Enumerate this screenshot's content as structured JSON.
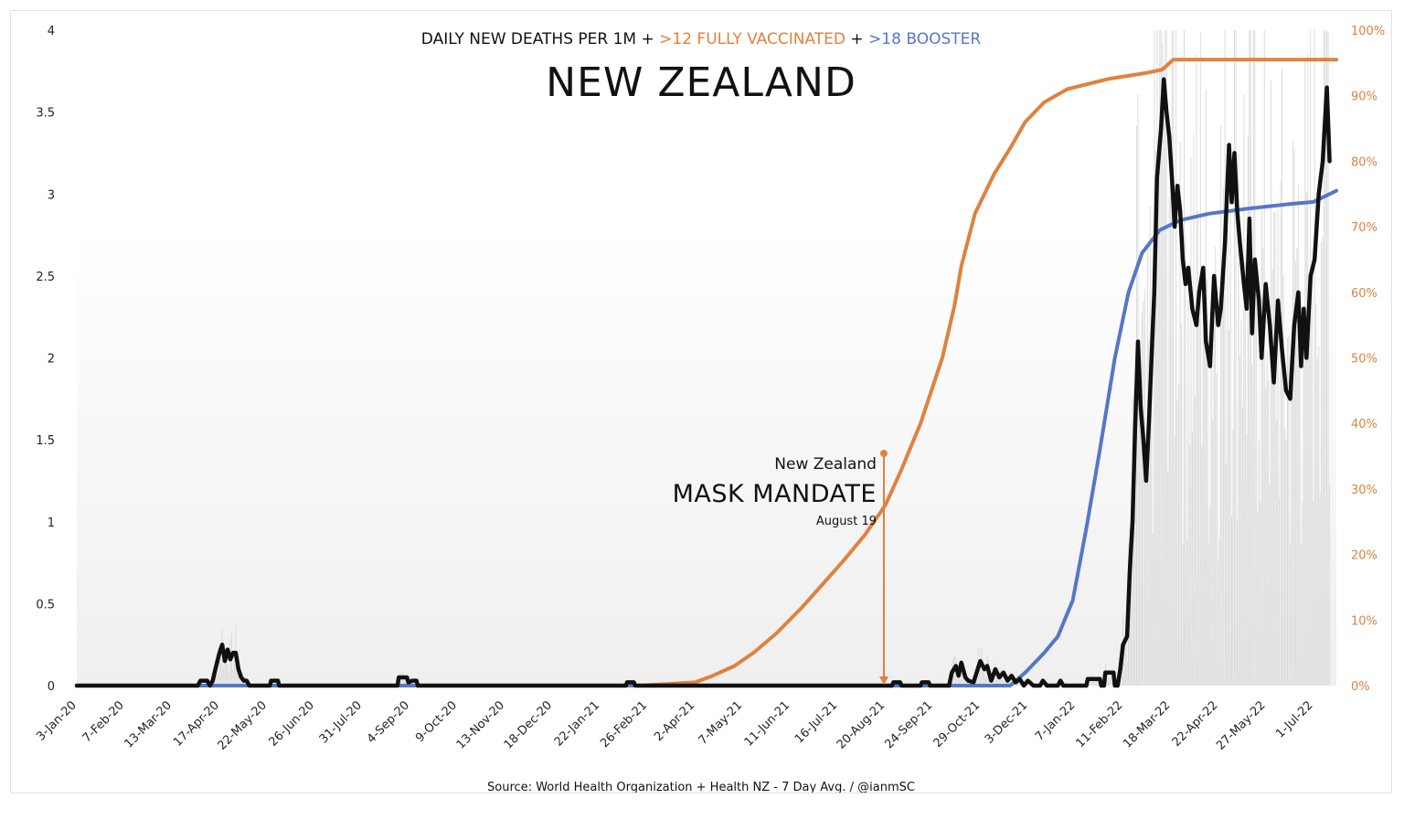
{
  "chart_data": {
    "type": "line",
    "title": "NEW ZEALAND",
    "subtitle": {
      "part1": "DAILY NEW DEATHS PER 1M + ",
      "part2": ">12 FULLY VACCINATED",
      "part3": " + ",
      "part4": ">18 BOOSTER"
    },
    "source": "Source: World Health Organization + Health NZ - 7 Day Avg. / @ianmSC",
    "x_labels": [
      "3-Jan-20",
      "7-Feb-20",
      "13-Mar-20",
      "17-Apr-20",
      "22-May-20",
      "26-Jun-20",
      "31-Jul-20",
      "4-Sep-20",
      "9-Oct-20",
      "13-Nov-20",
      "18-Dec-20",
      "22-Jan-21",
      "26-Feb-21",
      "2-Apr-21",
      "7-May-21",
      "11-Jun-21",
      "16-Jul-21",
      "20-Aug-21",
      "24-Sep-21",
      "29-Oct-21",
      "3-Dec-21",
      "7-Jan-22",
      "11-Feb-22",
      "18-Mar-22",
      "22-Apr-22",
      "27-May-22",
      "1-Jul-22"
    ],
    "y_left": {
      "ticks": [
        "4",
        "3.5",
        "3",
        "2.5",
        "2",
        "1.5",
        "1",
        "0.5",
        "0"
      ],
      "range": [
        0,
        4
      ]
    },
    "y_right": {
      "ticks": [
        "100%",
        "90%",
        "80%",
        "70%",
        "60%",
        "50%",
        "40%",
        "30%",
        "20%",
        "10%",
        "0%"
      ],
      "range": [
        0,
        100
      ]
    },
    "x_range": [
      "3-Jan-20",
      "18-Jul-22"
    ],
    "series": [
      {
        "name": ">12 FULLY VACCINATED",
        "axis": "right",
        "color": "#e0813f",
        "points": [
          [
            "3-Jan-20",
            0
          ],
          [
            "20-Feb-21",
            0
          ],
          [
            "2-Apr-21",
            0.5
          ],
          [
            "15-Apr-21",
            1.5
          ],
          [
            "1-May-21",
            3
          ],
          [
            "15-May-21",
            5
          ],
          [
            "1-Jun-21",
            8
          ],
          [
            "20-Jun-21",
            12
          ],
          [
            "5-Jul-21",
            15.5
          ],
          [
            "20-Jul-21",
            19
          ],
          [
            "5-Aug-21",
            23
          ],
          [
            "20-Aug-21",
            27.5
          ],
          [
            "1-Sep-21",
            33
          ],
          [
            "15-Sep-21",
            40
          ],
          [
            "1-Oct-21",
            50
          ],
          [
            "10-Oct-21",
            58
          ],
          [
            "15-Oct-21",
            64
          ],
          [
            "25-Oct-21",
            72
          ],
          [
            "8-Nov-21",
            78
          ],
          [
            "20-Nov-21,",
            82
          ],
          [
            "1-Dec-21",
            86
          ],
          [
            "15-Dec-21",
            89
          ],
          [
            "1-Jan-22",
            91
          ],
          [
            "1-Feb-22",
            92.6
          ],
          [
            "1-Mar-22",
            93.5
          ],
          [
            "12-Mar-22",
            94
          ],
          [
            "20-Mar-22",
            95.5
          ],
          [
            "1-Apr-22",
            95.5
          ],
          [
            "18-Jul-22",
            95.5
          ]
        ]
      },
      {
        "name": ">18 BOOSTER",
        "axis": "right",
        "color": "#5577c6",
        "points": [
          [
            "3-Jan-20",
            0
          ],
          [
            "20-Nov-21",
            0
          ],
          [
            "1-Dec-21",
            2
          ],
          [
            "15-Dec-21",
            5
          ],
          [
            "25-Dec-21",
            7.5
          ],
          [
            "5-Jan-22",
            13
          ],
          [
            "15-Jan-22",
            24
          ],
          [
            "25-Jan-22",
            36
          ],
          [
            "5-Feb-22",
            50
          ],
          [
            "15-Feb-22",
            60
          ],
          [
            "25-Feb-22",
            66
          ],
          [
            "10-Mar-22",
            69.5
          ],
          [
            "25-Mar-22",
            71
          ],
          [
            "15-Apr-22",
            72
          ],
          [
            "15-May-22",
            72.8
          ],
          [
            "15-Jun-22",
            73.5
          ],
          [
            "1-Jul-22",
            73.8
          ],
          [
            "18-Jul-22",
            75.5
          ]
        ]
      },
      {
        "name": "Daily new deaths per 1M (7 day avg)",
        "axis": "left",
        "color": "#111111",
        "points": [
          [
            "3-Jan-20",
            0
          ],
          [
            "1-Apr-20",
            0
          ],
          [
            "3-Apr-20",
            0.03
          ],
          [
            "8-Apr-20",
            0.03
          ],
          [
            "10-Apr-20",
            0
          ],
          [
            "12-Apr-20",
            0.03
          ],
          [
            "14-Apr-20",
            0.1
          ],
          [
            "17-Apr-20",
            0.2
          ],
          [
            "19-Apr-20",
            0.25
          ],
          [
            "21-Apr-20",
            0.15
          ],
          [
            "23-Apr-20",
            0.22
          ],
          [
            "25-Apr-20",
            0.16
          ],
          [
            "27-Apr-20",
            0.2
          ],
          [
            "29-Apr-20",
            0.2
          ],
          [
            "1-May-20",
            0.1
          ],
          [
            "3-May-20",
            0.05
          ],
          [
            "5-May-20",
            0.03
          ],
          [
            "7-May-20",
            0.03
          ],
          [
            "9-May-20",
            0
          ],
          [
            "24-May-20",
            0
          ],
          [
            "25-May-20",
            0.03
          ],
          [
            "30-May-20",
            0.03
          ],
          [
            "31-May-20",
            0
          ],
          [
            "26-Aug-20",
            0
          ],
          [
            "27-Aug-20",
            0.05
          ],
          [
            "2-Sep-20",
            0.05
          ],
          [
            "3-Sep-20",
            0.02
          ],
          [
            "6-Sep-20",
            0.03
          ],
          [
            "9-Sep-20",
            0.03
          ],
          [
            "10-Sep-20",
            0
          ],
          [
            "10-Feb-21",
            0
          ],
          [
            "11-Feb-21",
            0.02
          ],
          [
            "16-Feb-21",
            0.02
          ],
          [
            "17-Feb-21",
            0
          ],
          [
            "25-Aug-21",
            0
          ],
          [
            "26-Aug-21",
            0.02
          ],
          [
            "31-Aug-21",
            0.02
          ],
          [
            "1-Sep-21",
            0
          ],
          [
            "15-Sep-21",
            0
          ],
          [
            "16-Sep-21",
            0.02
          ],
          [
            "21-Sep-21",
            0.02
          ],
          [
            "22-Sep-21",
            0
          ],
          [
            "6-Oct-21",
            0
          ],
          [
            "8-Oct-21",
            0.08
          ],
          [
            "11-Oct-21",
            0.12
          ],
          [
            "13-Oct-21",
            0.06
          ],
          [
            "15-Oct-21",
            0.14
          ],
          [
            "18-Oct-21",
            0.05
          ],
          [
            "20-Oct-21",
            0.03
          ],
          [
            "24-Oct-21",
            0.02
          ],
          [
            "27-Oct-21",
            0.1
          ],
          [
            "29-Oct-21",
            0.15
          ],
          [
            "1-Nov-21",
            0.1
          ],
          [
            "3-Nov-21",
            0.12
          ],
          [
            "6-Nov-21",
            0.03
          ],
          [
            "9-Nov-21",
            0.1
          ],
          [
            "12-Nov-21",
            0.05
          ],
          [
            "15-Nov-21",
            0.08
          ],
          [
            "18-Nov-21",
            0.03
          ],
          [
            "21-Nov-21",
            0.06
          ],
          [
            "24-Nov-21",
            0.02
          ],
          [
            "27-Nov-21",
            0.04
          ],
          [
            "30-Nov-21",
            0
          ],
          [
            "3-Dec-21",
            0.03
          ],
          [
            "7-Dec-21",
            0
          ],
          [
            "12-Dec-21",
            0
          ],
          [
            "14-Dec-21",
            0.03
          ],
          [
            "17-Dec-21",
            0
          ],
          [
            "25-Dec-21",
            0
          ],
          [
            "27-Dec-21",
            0.03
          ],
          [
            "29-Dec-21",
            0
          ],
          [
            "15-Jan-22",
            0
          ],
          [
            "16-Jan-22",
            0.04
          ],
          [
            "25-Jan-22",
            0.04
          ],
          [
            "26-Jan-22",
            0
          ],
          [
            "28-Jan-22",
            0
          ],
          [
            "29-Jan-22",
            0.08
          ],
          [
            "4-Feb-22",
            0.08
          ],
          [
            "5-Feb-22",
            0
          ],
          [
            "7-Feb-22",
            0
          ],
          [
            "9-Feb-22",
            0.1
          ],
          [
            "11-Feb-22",
            0.25
          ],
          [
            "14-Feb-22",
            0.3
          ],
          [
            "16-Feb-22",
            0.7
          ],
          [
            "18-Feb-22",
            1.0
          ],
          [
            "20-Feb-22",
            1.6
          ],
          [
            "22-Feb-22",
            2.1
          ],
          [
            "24-Feb-22",
            1.7
          ],
          [
            "26-Feb-22",
            1.5
          ],
          [
            "28-Feb-22",
            1.25
          ],
          [
            "2-Mar-22",
            1.6
          ],
          [
            "4-Mar-22",
            2.0
          ],
          [
            "6-Mar-22",
            2.4
          ],
          [
            "8-Mar-22",
            3.1
          ],
          [
            "11-Mar-22",
            3.4
          ],
          [
            "13-Mar-22",
            3.7
          ],
          [
            "15-Mar-22",
            3.5
          ],
          [
            "17-Mar-22",
            3.35
          ],
          [
            "19-Mar-22",
            3.1
          ],
          [
            "21-Mar-22",
            2.8
          ],
          [
            "23-Mar-22",
            3.05
          ],
          [
            "25-Mar-22",
            2.9
          ],
          [
            "27-Mar-22",
            2.6
          ],
          [
            "29-Mar-22",
            2.45
          ],
          [
            "31-Mar-22",
            2.55
          ],
          [
            "3-Apr-22",
            2.3
          ],
          [
            "6-Apr-22",
            2.2
          ],
          [
            "8-Apr-22",
            2.4
          ],
          [
            "11-Apr-22",
            2.55
          ],
          [
            "13-Apr-22",
            2.1
          ],
          [
            "16-Apr-22",
            1.95
          ],
          [
            "19-Apr-22",
            2.5
          ],
          [
            "22-Apr-22",
            2.2
          ],
          [
            "24-Apr-22",
            2.3
          ],
          [
            "27-Apr-22",
            2.7
          ],
          [
            "30-Apr-22",
            3.3
          ],
          [
            "2-May-22",
            2.95
          ],
          [
            "4-May-22",
            3.25
          ],
          [
            "6-May-22",
            2.9
          ],
          [
            "8-May-22",
            2.7
          ],
          [
            "11-May-22",
            2.45
          ],
          [
            "13-May-22",
            2.3
          ],
          [
            "15-May-22",
            2.85
          ],
          [
            "17-May-22",
            2.15
          ],
          [
            "19-May-22",
            2.6
          ],
          [
            "22-May-22",
            2.35
          ],
          [
            "24-May-22",
            2.0
          ],
          [
            "27-May-22",
            2.45
          ],
          [
            "30-May-22",
            2.2
          ],
          [
            "2-Jun-22",
            1.85
          ],
          [
            "5-Jun-22",
            2.35
          ],
          [
            "8-Jun-22",
            2.05
          ],
          [
            "11-Jun-22",
            1.8
          ],
          [
            "14-Jun-22",
            1.75
          ],
          [
            "17-Jun-22",
            2.2
          ],
          [
            "20-Jun-22",
            2.4
          ],
          [
            "22-Jun-22",
            1.95
          ],
          [
            "24-Jun-22",
            2.3
          ],
          [
            "26-Jun-22",
            2.0
          ],
          [
            "29-Jun-22",
            2.5
          ],
          [
            "2-Jul-22",
            2.6
          ],
          [
            "5-Jul-22",
            3.0
          ],
          [
            "8-Jul-22",
            3.2
          ],
          [
            "11-Jul-22",
            3.65
          ],
          [
            "13-Jul-22",
            3.2
          ]
        ]
      }
    ],
    "annotation": {
      "line1": "New Zealand",
      "line2": "MASK MANDATE",
      "line3": "August 19",
      "date": "19-Aug-21",
      "color": "#e0813f"
    },
    "grid": false,
    "legend": "none"
  }
}
